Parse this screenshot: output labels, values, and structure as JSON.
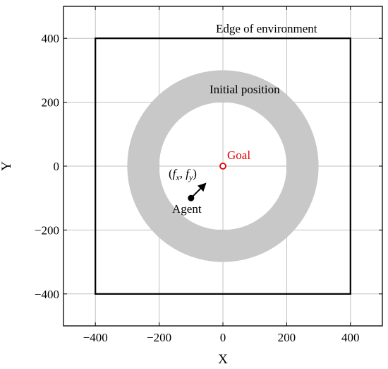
{
  "chart_data": {
    "type": "scatter",
    "xlabel": "X",
    "ylabel": "Y",
    "xlim": [
      -500,
      500
    ],
    "ylim": [
      -500,
      500
    ],
    "xticks": [
      -400,
      -200,
      0,
      200,
      400
    ],
    "yticks": [
      -400,
      -200,
      0,
      200,
      400
    ],
    "xtick_labels": [
      "−400",
      "−200",
      "0",
      "200",
      "400"
    ],
    "ytick_labels": [
      "−400",
      "−200",
      "0",
      "200",
      "400"
    ],
    "grid": true,
    "environment_edge": {
      "xmin": -400,
      "xmax": 400,
      "ymin": -400,
      "ymax": 400,
      "label": "Edge of environment"
    },
    "initial_position_ring": {
      "center": [
        0,
        0
      ],
      "inner_radius": 200,
      "outer_radius": 300,
      "label": "Initial position",
      "color": "#c8c8c8"
    },
    "goal": {
      "x": 0,
      "y": 0,
      "label": "Goal",
      "color": "#e00000"
    },
    "agent": {
      "x": -100,
      "y": -100,
      "label": "Agent",
      "color": "#000000"
    },
    "force_vector": {
      "dx": 45,
      "dy": 45,
      "label_parts": [
        "(",
        "f",
        "x",
        ", ",
        "f",
        "y",
        ")"
      ]
    }
  }
}
